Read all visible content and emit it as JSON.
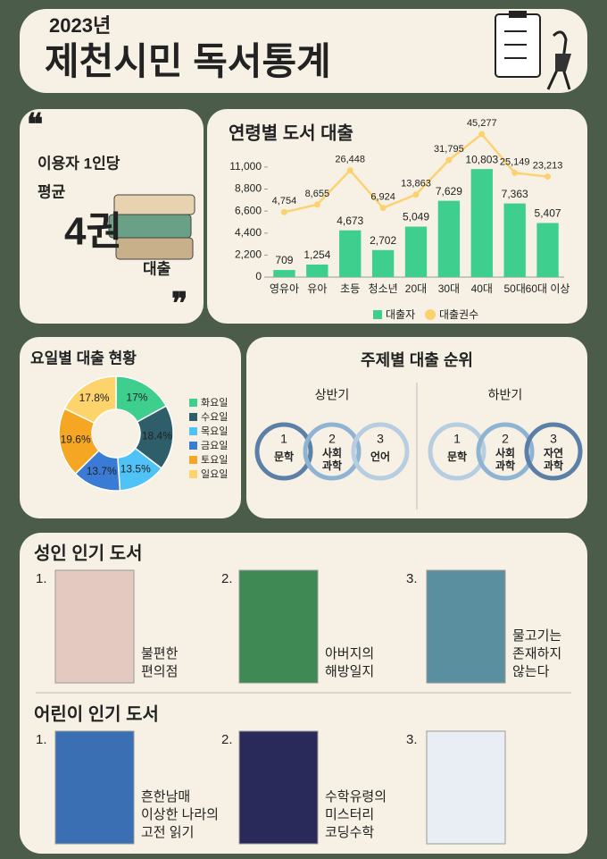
{
  "header": {
    "year": "2023년",
    "title": "제천시민 독서통계"
  },
  "per_user": {
    "line1": "이용자 1인당",
    "line2": "평균",
    "amount": "4권",
    "suffix": "대출"
  },
  "chart_data": [
    {
      "type": "bar-line",
      "title": "연령별 도서 대출",
      "categories": [
        "영유아",
        "유아",
        "초등",
        "청소년",
        "20대",
        "30대",
        "40대",
        "50대",
        "60대 이상"
      ],
      "series": [
        {
          "name": "대출자",
          "color": "#3ecf8e",
          "values": [
            709,
            1254,
            4673,
            2702,
            5049,
            7629,
            10803,
            7363,
            5407
          ],
          "value_labels": [
            "709",
            "1,254",
            "4,673",
            "2,702",
            "5,049",
            "7,629",
            "10,803",
            "7,363",
            "5,407"
          ]
        },
        {
          "name": "대출권수",
          "color": "#fcd271",
          "axis": "y2",
          "values": [
            4754,
            8655,
            26448,
            6924,
            13863,
            31795,
            45277,
            25149,
            23213
          ],
          "value_labels": [
            "4,754",
            "8,655",
            "26,448",
            "6,924",
            "13,863",
            "31,795",
            "45,277",
            "25,149",
            "23,213"
          ]
        }
      ],
      "ylim": [
        0,
        14300
      ],
      "y2lim": [
        -29000,
        45300
      ],
      "yticks": [
        0,
        {
          "value": 2200,
          "label": "2,200"
        },
        {
          "value": 4400,
          "label": "4,400"
        },
        {
          "value": 6600,
          "label": "6,600"
        },
        {
          "value": 8800,
          "label": "8,800"
        },
        {
          "value": 11000,
          "label": "11,000"
        }
      ],
      "legend": "bottom"
    },
    {
      "type": "donut",
      "title": "요일별 대출 현황",
      "categories": [
        "화요일",
        "수요일",
        "목요일",
        "금요일",
        "토요일",
        "일요일"
      ],
      "values": [
        17,
        18.4,
        13.5,
        13.7,
        19.6,
        17.8
      ],
      "value_labels": [
        "17%",
        "18.4%",
        "13.5%",
        "13.7%",
        "19.6%",
        "17.8%"
      ],
      "colors": [
        "#3ecf8e",
        "#2e5e6a",
        "#4fc3f7",
        "#3a7bd5",
        "#f5a623",
        "#fdd36b"
      ],
      "legend": "right"
    }
  ],
  "subjects": {
    "title": "주제별 대출 순위",
    "halves": [
      {
        "name": "상반기",
        "items": [
          {
            "rank": "1",
            "label": [
              "문학"
            ]
          },
          {
            "rank": "2",
            "label": [
              "사회",
              "과학"
            ]
          },
          {
            "rank": "3",
            "label": [
              "언어"
            ]
          }
        ]
      },
      {
        "name": "하반기",
        "items": [
          {
            "rank": "1",
            "label": [
              "문학"
            ]
          },
          {
            "rank": "2",
            "label": [
              "사회",
              "과학"
            ]
          },
          {
            "rank": "3",
            "label": [
              "자연",
              "과학"
            ]
          }
        ]
      }
    ]
  },
  "books": [
    {
      "title": "성인 인기 도서",
      "items": [
        {
          "rank": "1.",
          "title_lines": [
            "불편한",
            "편의점"
          ]
        },
        {
          "rank": "2.",
          "title_lines": [
            "아버지의",
            "해방일지"
          ]
        },
        {
          "rank": "3.",
          "title_lines": [
            "물고기는",
            "존재하지",
            "않는다"
          ]
        }
      ]
    },
    {
      "title": "어린이 인기 도서",
      "items": [
        {
          "rank": "1.",
          "title_lines": [
            "흔한남매",
            "이상한 나라의",
            "고전 읽기"
          ]
        },
        {
          "rank": "2.",
          "title_lines": [
            "수학유령의",
            "미스터리",
            "코딩수학"
          ]
        },
        {
          "rank": "3.",
          "title_lines": []
        }
      ]
    }
  ]
}
